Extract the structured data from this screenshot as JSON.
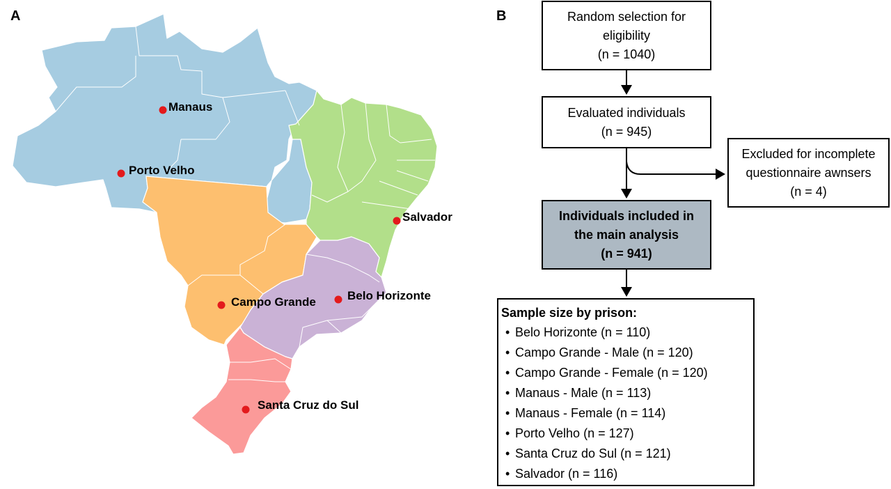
{
  "panels": {
    "a": "A",
    "b": "B"
  },
  "map": {
    "region_colors": {
      "north": "#a6cce1",
      "northeast": "#b2df8a",
      "central_west": "#fdbf6f",
      "southeast": "#cab2d6",
      "south": "#fb9a99"
    },
    "marker_color": "#e31a1c",
    "cities": [
      {
        "id": "manaus",
        "name": "Manaus"
      },
      {
        "id": "porto-velho",
        "name": "Porto Velho"
      },
      {
        "id": "salvador",
        "name": "Salvador"
      },
      {
        "id": "campo-grande",
        "name": "Campo Grande"
      },
      {
        "id": "belo-horizonte",
        "name": "Belo Horizonte"
      },
      {
        "id": "santa-cruz-do-sul",
        "name": "Santa Cruz do Sul"
      }
    ]
  },
  "flowchart": {
    "random_selection": {
      "line1": "Random selection for",
      "line2": "eligibility",
      "line3": "(n = 1040)"
    },
    "evaluated": {
      "line1": "Evaluated individuals",
      "line2": "(n = 945)"
    },
    "excluded": {
      "line1": "Excluded for incomplete",
      "line2": "questionnaire awnsers",
      "line3": "(n = 4)"
    },
    "included": {
      "line1": "Individuals included in",
      "line2": "the main analysis",
      "line3": "(n = 941)",
      "fill": "#adb9c3"
    },
    "sample": {
      "title": "Sample size by prison:",
      "items": [
        "Belo Horizonte (n = 110)",
        "Campo Grande - Male (n = 120)",
        "Campo Grande - Female (n = 120)",
        "Manaus - Male (n = 113)",
        "Manaus - Female (n = 114)",
        "Porto Velho (n = 127)",
        "Santa Cruz do Sul (n = 121)",
        "Salvador (n = 116)"
      ]
    }
  }
}
